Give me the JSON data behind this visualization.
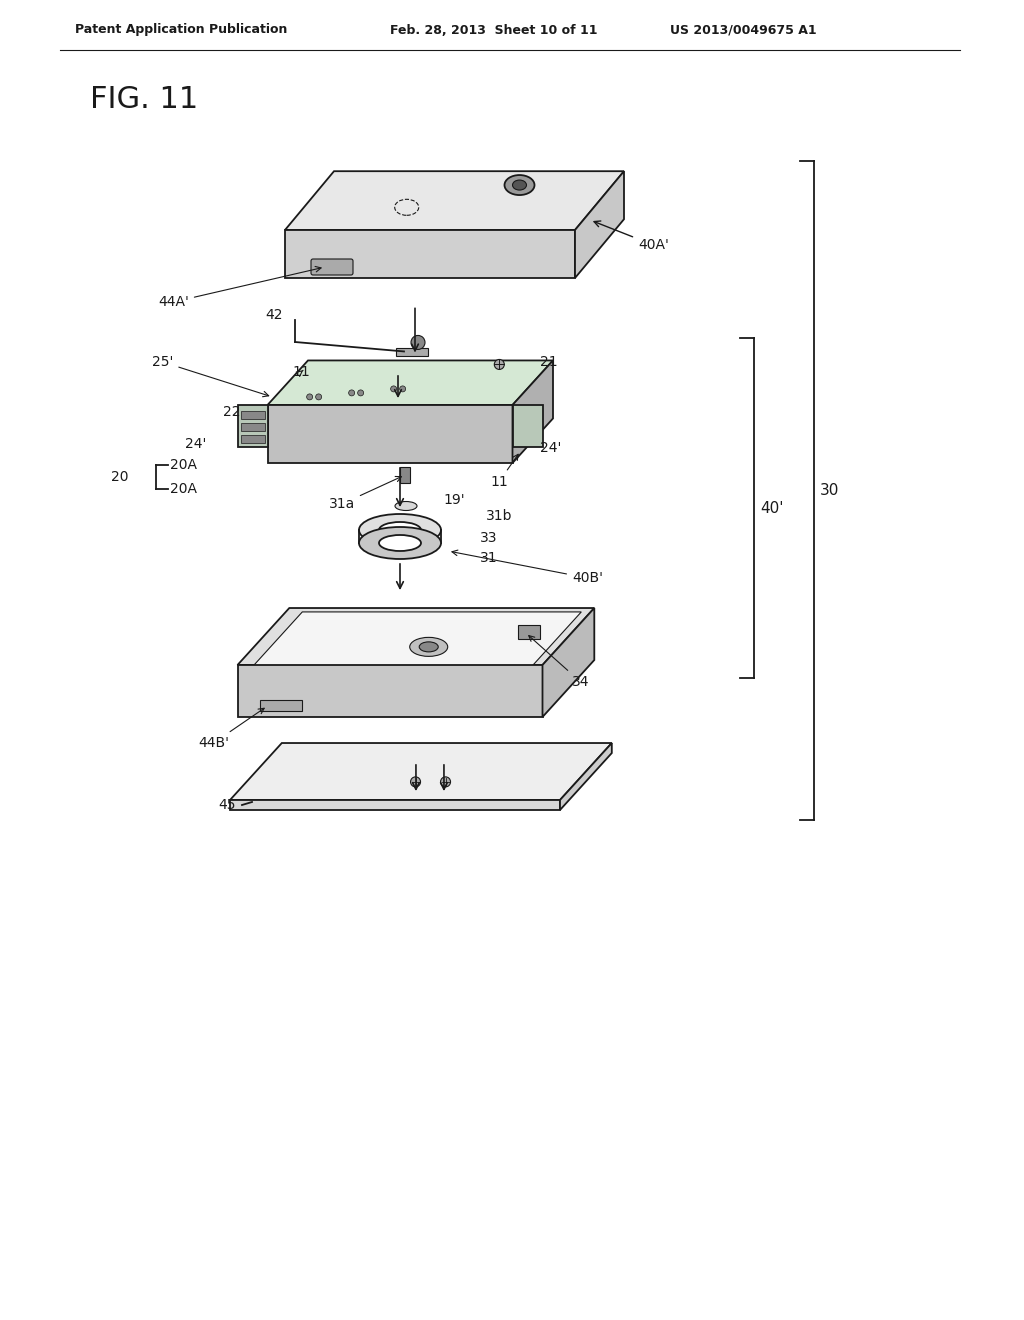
{
  "header_left": "Patent Application Publication",
  "header_mid": "Feb. 28, 2013  Sheet 10 of 11",
  "header_right": "US 2013/0049675 A1",
  "fig_label": "FIG. 11",
  "bg_color": "#ffffff",
  "line_color": "#1a1a1a",
  "labels": {
    "40A_prime": "40A'",
    "44A_prime": "44A'",
    "25_prime": "25'",
    "42": "42",
    "11_top": "11",
    "21": "21",
    "22": "22",
    "24_prime_left": "24'",
    "24_prime_right": "24'",
    "11_mid": "11",
    "20": "20",
    "20A_top": "20A",
    "20A_bot": "20A",
    "31a": "31a",
    "19_prime": "19'",
    "31b": "31b",
    "33": "33",
    "31": "31",
    "40B_prime": "40B'",
    "34": "34",
    "44B_prime": "44B'",
    "45": "45",
    "40_prime": "40'",
    "30": "30"
  }
}
